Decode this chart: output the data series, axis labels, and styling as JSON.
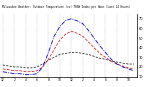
{
  "title": "Milwaukee Weather: Outdoor Temperature (vs) THSW Index per Hour (Last 24 Hours)",
  "x_hours": [
    0,
    1,
    2,
    3,
    4,
    5,
    6,
    7,
    8,
    9,
    10,
    11,
    12,
    13,
    14,
    15,
    16,
    17,
    18,
    19,
    20,
    21,
    22,
    23
  ],
  "temp_outdoor": [
    22,
    21,
    20,
    20,
    19,
    19,
    20,
    23,
    27,
    30,
    33,
    34,
    35,
    35,
    34,
    33,
    31,
    29,
    28,
    26,
    25,
    24,
    23,
    23
  ],
  "thsw_index": [
    15,
    14,
    13,
    13,
    12,
    12,
    13,
    20,
    35,
    52,
    62,
    68,
    70,
    68,
    65,
    58,
    50,
    42,
    35,
    28,
    23,
    20,
    18,
    16
  ],
  "temp_apparent": [
    18,
    17,
    16,
    16,
    15,
    15,
    16,
    20,
    28,
    38,
    48,
    54,
    57,
    55,
    52,
    46,
    40,
    34,
    30,
    26,
    23,
    21,
    19,
    18
  ],
  "line_color_black": "#000000",
  "line_color_red": "#dd0000",
  "line_color_blue": "#0000cc",
  "bg_color": "#ffffff",
  "grid_color": "#888888",
  "ylim": [
    10,
    75
  ],
  "yticks": [
    10,
    20,
    30,
    40,
    50,
    60,
    70
  ],
  "ytick_labels": [
    "10",
    "20",
    "30",
    "40",
    "50",
    "60",
    "70"
  ],
  "xtick_positions": [
    0,
    2,
    4,
    6,
    8,
    10,
    12,
    14,
    16,
    18,
    20,
    22
  ],
  "xtick_labels": [
    "12",
    "2",
    "4",
    "6",
    "8",
    "10",
    "12",
    "2",
    "4",
    "6",
    "8",
    "10"
  ],
  "vgrid_positions": [
    0,
    2,
    4,
    6,
    8,
    10,
    12,
    14,
    16,
    18,
    20,
    22
  ]
}
